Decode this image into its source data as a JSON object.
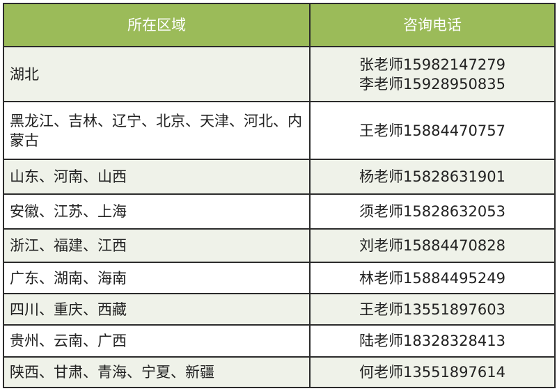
{
  "headers": {
    "region": "所在区域",
    "phone": "咨询电话"
  },
  "colors": {
    "header_bg": "#9bbb59",
    "alt_row_bg": "#eff2e9"
  },
  "rows": [
    {
      "region": "湖北",
      "contacts": [
        "张老师15982147279",
        "李老师15928950835"
      ]
    },
    {
      "region": "黑龙江、吉林、辽宁、北京、天津、河北、内蒙古",
      "contacts": [
        "王老师15884470757"
      ]
    },
    {
      "region": "山东、河南、山西",
      "contacts": [
        "杨老师15828631901"
      ]
    },
    {
      "region": "安徽、江苏、上海",
      "contacts": [
        "须老师15828632053"
      ]
    },
    {
      "region": "浙江、福建、江西",
      "contacts": [
        "刘老师15884470828"
      ]
    },
    {
      "region": "广东、湖南、海南",
      "contacts": [
        "林老师15884495249"
      ]
    },
    {
      "region": "四川、重庆、西藏",
      "contacts": [
        "王老师13551897603"
      ]
    },
    {
      "region": "贵州、云南、广西",
      "contacts": [
        "陆老师18328328413"
      ]
    },
    {
      "region": "陕西、甘肃、青海、宁夏、新疆",
      "contacts": [
        "何老师13551897614"
      ]
    }
  ]
}
